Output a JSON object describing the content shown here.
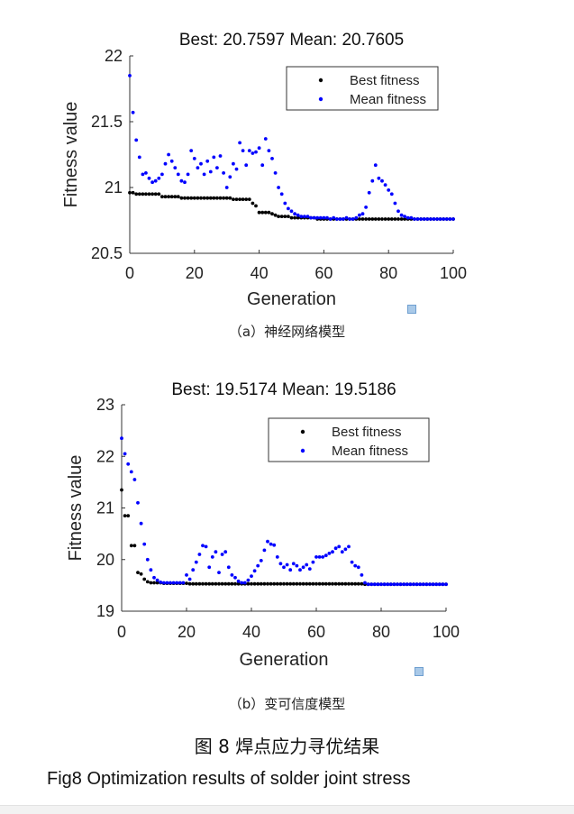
{
  "chart_data": [
    {
      "type": "scatter",
      "title": "Best: 20.7597 Mean: 20.7605",
      "xlabel": "Generation",
      "ylabel": "Fitness value",
      "xlim": [
        0,
        100
      ],
      "ylim": [
        20.5,
        22
      ],
      "xticks": [
        "0",
        "20",
        "40",
        "60",
        "80",
        "100"
      ],
      "yticks": [
        "20.5",
        "21",
        "21.5",
        "22"
      ],
      "legend_position": "top-right",
      "series": [
        {
          "name": "Best fitness",
          "color": "#000000",
          "x": [
            0,
            1,
            2,
            3,
            4,
            5,
            6,
            7,
            8,
            9,
            10,
            11,
            12,
            13,
            14,
            15,
            16,
            17,
            18,
            19,
            20,
            21,
            22,
            23,
            24,
            25,
            26,
            27,
            28,
            29,
            30,
            31,
            32,
            33,
            34,
            35,
            36,
            37,
            38,
            39,
            40,
            41,
            42,
            43,
            44,
            45,
            46,
            47,
            48,
            49,
            50,
            51,
            52,
            53,
            54,
            55,
            56,
            57,
            58,
            59,
            60,
            61,
            62,
            63,
            64,
            65,
            66,
            67,
            68,
            69,
            70,
            71,
            72,
            73,
            74,
            75,
            76,
            77,
            78,
            79,
            80,
            81,
            82,
            83,
            84,
            85,
            86,
            87,
            88,
            89,
            90,
            91,
            92,
            93,
            94,
            95,
            96,
            97,
            98,
            99,
            100
          ],
          "y": [
            20.96,
            20.96,
            20.95,
            20.95,
            20.95,
            20.95,
            20.95,
            20.95,
            20.95,
            20.95,
            20.93,
            20.93,
            20.93,
            20.93,
            20.93,
            20.93,
            20.92,
            20.92,
            20.92,
            20.92,
            20.92,
            20.92,
            20.92,
            20.92,
            20.92,
            20.92,
            20.92,
            20.92,
            20.92,
            20.92,
            20.92,
            20.92,
            20.91,
            20.91,
            20.91,
            20.91,
            20.91,
            20.91,
            20.88,
            20.86,
            20.81,
            20.81,
            20.81,
            20.81,
            20.8,
            20.79,
            20.78,
            20.78,
            20.78,
            20.78,
            20.77,
            20.77,
            20.77,
            20.77,
            20.77,
            20.77,
            20.77,
            20.77,
            20.76,
            20.76,
            20.76,
            20.76,
            20.76,
            20.76,
            20.76,
            20.76,
            20.76,
            20.76,
            20.76,
            20.76,
            20.76,
            20.76,
            20.76,
            20.76,
            20.76,
            20.76,
            20.76,
            20.76,
            20.76,
            20.76,
            20.76,
            20.76,
            20.76,
            20.76,
            20.76,
            20.76,
            20.76,
            20.76,
            20.76,
            20.76,
            20.76,
            20.76,
            20.76,
            20.76,
            20.76,
            20.76,
            20.76,
            20.76,
            20.76,
            20.76,
            20.76
          ]
        },
        {
          "name": "Mean fitness",
          "color": "#0000ff",
          "x": [
            0,
            1,
            2,
            3,
            4,
            5,
            6,
            7,
            8,
            9,
            10,
            11,
            12,
            13,
            14,
            15,
            16,
            17,
            18,
            19,
            20,
            21,
            22,
            23,
            24,
            25,
            26,
            27,
            28,
            29,
            30,
            31,
            32,
            33,
            34,
            35,
            36,
            37,
            38,
            39,
            40,
            41,
            42,
            43,
            44,
            45,
            46,
            47,
            48,
            49,
            50,
            51,
            52,
            53,
            54,
            55,
            56,
            57,
            58,
            59,
            60,
            61,
            62,
            63,
            64,
            65,
            66,
            67,
            68,
            69,
            70,
            71,
            72,
            73,
            74,
            75,
            76,
            77,
            78,
            79,
            80,
            81,
            82,
            83,
            84,
            85,
            86,
            87,
            88,
            89,
            90,
            91,
            92,
            93,
            94,
            95,
            96,
            97,
            98,
            99,
            100
          ],
          "y": [
            21.85,
            21.57,
            21.36,
            21.23,
            21.1,
            21.11,
            21.07,
            21.04,
            21.05,
            21.07,
            21.1,
            21.18,
            21.25,
            21.2,
            21.15,
            21.1,
            21.05,
            21.04,
            21.1,
            21.28,
            21.22,
            21.15,
            21.18,
            21.1,
            21.2,
            21.12,
            21.23,
            21.15,
            21.24,
            21.11,
            21.0,
            21.08,
            21.18,
            21.14,
            21.34,
            21.28,
            21.17,
            21.28,
            21.26,
            21.27,
            21.3,
            21.17,
            21.37,
            21.28,
            21.22,
            21.11,
            21.0,
            20.95,
            20.88,
            20.84,
            20.82,
            20.8,
            20.79,
            20.78,
            20.78,
            20.78,
            20.77,
            20.77,
            20.77,
            20.77,
            20.77,
            20.77,
            20.76,
            20.77,
            20.76,
            20.76,
            20.76,
            20.77,
            20.76,
            20.76,
            20.77,
            20.79,
            20.8,
            20.85,
            20.96,
            21.05,
            21.17,
            21.07,
            21.05,
            21.02,
            20.98,
            20.95,
            20.88,
            20.82,
            20.79,
            20.78,
            20.77,
            20.77,
            20.76,
            20.76,
            20.76,
            20.76,
            20.76,
            20.76,
            20.76,
            20.76,
            20.76,
            20.76,
            20.76,
            20.76,
            20.76
          ]
        }
      ]
    },
    {
      "type": "scatter",
      "title": "Best: 19.5174 Mean: 19.5186",
      "xlabel": "Generation",
      "ylabel": "Fitness value",
      "xlim": [
        0,
        100
      ],
      "ylim": [
        19,
        23
      ],
      "xticks": [
        "0",
        "20",
        "40",
        "60",
        "80",
        "100"
      ],
      "yticks": [
        "19",
        "20",
        "21",
        "22",
        "23"
      ],
      "legend_position": "top-right",
      "series": [
        {
          "name": "Best fitness",
          "color": "#000000",
          "x": [
            0,
            1,
            2,
            3,
            4,
            5,
            6,
            7,
            8,
            9,
            10,
            11,
            12,
            13,
            14,
            15,
            16,
            17,
            18,
            19,
            20,
            21,
            22,
            23,
            24,
            25,
            26,
            27,
            28,
            29,
            30,
            31,
            32,
            33,
            34,
            35,
            36,
            37,
            38,
            39,
            40,
            41,
            42,
            43,
            44,
            45,
            46,
            47,
            48,
            49,
            50,
            51,
            52,
            53,
            54,
            55,
            56,
            57,
            58,
            59,
            60,
            61,
            62,
            63,
            64,
            65,
            66,
            67,
            68,
            69,
            70,
            71,
            72,
            73,
            74,
            75,
            76,
            77,
            78,
            79,
            80,
            81,
            82,
            83,
            84,
            85,
            86,
            87,
            88,
            89,
            90,
            91,
            92,
            93,
            94,
            95,
            96,
            97,
            98,
            99,
            100
          ],
          "y": [
            21.35,
            20.85,
            20.85,
            20.27,
            20.27,
            19.75,
            19.72,
            19.62,
            19.57,
            19.55,
            19.55,
            19.55,
            19.55,
            19.54,
            19.54,
            19.54,
            19.54,
            19.54,
            19.54,
            19.54,
            19.54,
            19.53,
            19.53,
            19.53,
            19.53,
            19.53,
            19.53,
            19.53,
            19.53,
            19.53,
            19.53,
            19.53,
            19.53,
            19.53,
            19.53,
            19.53,
            19.53,
            19.53,
            19.53,
            19.53,
            19.53,
            19.53,
            19.53,
            19.53,
            19.53,
            19.53,
            19.53,
            19.53,
            19.53,
            19.53,
            19.53,
            19.53,
            19.53,
            19.53,
            19.53,
            19.53,
            19.53,
            19.53,
            19.53,
            19.53,
            19.53,
            19.53,
            19.53,
            19.53,
            19.53,
            19.53,
            19.53,
            19.53,
            19.53,
            19.53,
            19.53,
            19.53,
            19.53,
            19.53,
            19.53,
            19.52,
            19.52,
            19.52,
            19.52,
            19.52,
            19.52,
            19.52,
            19.52,
            19.52,
            19.52,
            19.52,
            19.52,
            19.52,
            19.52,
            19.52,
            19.52,
            19.52,
            19.52,
            19.52,
            19.52,
            19.52,
            19.52,
            19.52,
            19.52,
            19.52,
            19.52
          ]
        },
        {
          "name": "Mean fitness",
          "color": "#0000ff",
          "x": [
            0,
            1,
            2,
            3,
            4,
            5,
            6,
            7,
            8,
            9,
            10,
            11,
            12,
            13,
            14,
            15,
            16,
            17,
            18,
            19,
            20,
            21,
            22,
            23,
            24,
            25,
            26,
            27,
            28,
            29,
            30,
            31,
            32,
            33,
            34,
            35,
            36,
            37,
            38,
            39,
            40,
            41,
            42,
            43,
            44,
            45,
            46,
            47,
            48,
            49,
            50,
            51,
            52,
            53,
            54,
            55,
            56,
            57,
            58,
            59,
            60,
            61,
            62,
            63,
            64,
            65,
            66,
            67,
            68,
            69,
            70,
            71,
            72,
            73,
            74,
            75,
            76,
            77,
            78,
            79,
            80,
            81,
            82,
            83,
            84,
            85,
            86,
            87,
            88,
            89,
            90,
            91,
            92,
            93,
            94,
            95,
            96,
            97,
            98,
            99,
            100
          ],
          "y": [
            22.35,
            22.05,
            21.85,
            21.7,
            21.55,
            21.1,
            20.7,
            20.3,
            20.0,
            19.8,
            19.65,
            19.6,
            19.56,
            19.55,
            19.55,
            19.55,
            19.55,
            19.55,
            19.55,
            19.55,
            19.7,
            19.62,
            19.8,
            19.95,
            20.1,
            20.27,
            20.25,
            19.85,
            20.05,
            20.15,
            19.75,
            20.1,
            20.15,
            19.85,
            19.7,
            19.65,
            19.58,
            19.55,
            19.55,
            19.6,
            19.68,
            19.78,
            19.88,
            19.98,
            20.18,
            20.35,
            20.3,
            20.28,
            20.05,
            19.92,
            19.85,
            19.9,
            19.8,
            19.92,
            19.88,
            19.8,
            19.85,
            19.9,
            19.82,
            19.95,
            20.05,
            20.05,
            20.05,
            20.08,
            20.12,
            20.15,
            20.22,
            20.25,
            20.15,
            20.2,
            20.25,
            19.95,
            19.88,
            19.85,
            19.7,
            19.55,
            19.52,
            19.52,
            19.52,
            19.52,
            19.52,
            19.52,
            19.52,
            19.52,
            19.52,
            19.52,
            19.52,
            19.52,
            19.52,
            19.52,
            19.52,
            19.52,
            19.52,
            19.52,
            19.52,
            19.52,
            19.52,
            19.52,
            19.52,
            19.52,
            19.52
          ]
        }
      ]
    }
  ],
  "captions": {
    "a": "（a）神经网络模型",
    "b": "（b）变可信度模型",
    "figure_cn": "图 8  焊点应力寻优结果",
    "figure_en": "Fig8 Optimization results of solder joint stress"
  }
}
